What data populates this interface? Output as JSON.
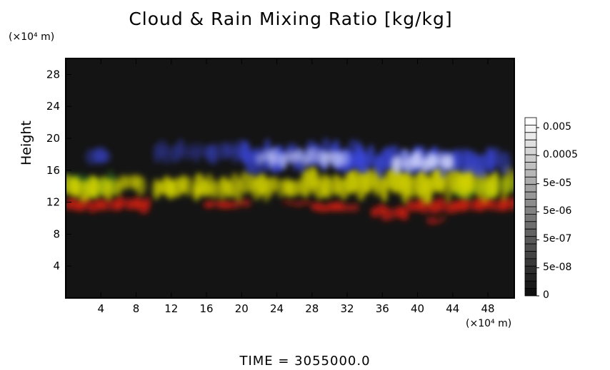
{
  "chart_data": {
    "type": "heatmap",
    "title": "Cloud & Rain Mixing Ratio [kg/kg]",
    "ylabel": "Height",
    "xlabel": "",
    "y_unit": "(×10⁴ m)",
    "x_unit": "(×10⁴ m)",
    "xlim": [
      0,
      51
    ],
    "ylim": [
      0,
      30
    ],
    "x_ticks": [
      4,
      8,
      12,
      16,
      20,
      24,
      28,
      32,
      36,
      40,
      44,
      48
    ],
    "y_ticks": [
      4,
      8,
      12,
      16,
      20,
      24,
      28
    ],
    "colorbar": {
      "labels": [
        "0.005",
        "0.0005",
        "5e-05",
        "5e-06",
        "5e-07",
        "5e-08",
        "0"
      ]
    },
    "footer": "TIME  =  3055000.0",
    "layers": {
      "ice_blue": {
        "color": "#3a46d8",
        "regions": [
          {
            "x": [
              2.5,
              5
            ],
            "y": [
              16.5,
              18.5
            ],
            "intensity": 0.5
          },
          {
            "x": [
              10,
              22
            ],
            "y": [
              17,
              19.5
            ],
            "intensity": 0.45
          },
          {
            "x": [
              20,
              34
            ],
            "y": [
              15.8,
              19.3
            ],
            "intensity": 0.85
          },
          {
            "x": [
              31,
              50
            ],
            "y": [
              15.5,
              18.8
            ],
            "intensity": 0.9
          }
        ]
      },
      "ice_white": {
        "color": "#d8dcff",
        "regions": [
          {
            "x": [
              22,
              32
            ],
            "y": [
              16.5,
              18.5
            ],
            "intensity": 0.55
          },
          {
            "x": [
              37,
              44
            ],
            "y": [
              15.8,
              18.3
            ],
            "intensity": 0.8
          }
        ]
      },
      "cloud_yellow": {
        "color": "#d4d400",
        "regions": [
          {
            "x": [
              0,
              5
            ],
            "y": [
              12.3,
              15
            ],
            "intensity": 0.9
          },
          {
            "x": [
              5,
              9
            ],
            "y": [
              13,
              15.3
            ],
            "intensity": 0.75
          },
          {
            "x": [
              10,
              14
            ],
            "y": [
              12.5,
              15
            ],
            "intensity": 0.9
          },
          {
            "x": [
              14.5,
              19
            ],
            "y": [
              12.3,
              15.2
            ],
            "intensity": 0.9
          },
          {
            "x": [
              19,
              23
            ],
            "y": [
              12.5,
              15.5
            ],
            "intensity": 0.9
          },
          {
            "x": [
              23,
              27
            ],
            "y": [
              12.8,
              15.2
            ],
            "intensity": 0.8
          },
          {
            "x": [
              27,
              37
            ],
            "y": [
              12.5,
              16
            ],
            "intensity": 0.95
          },
          {
            "x": [
              37,
              45
            ],
            "y": [
              12.3,
              16.3
            ],
            "intensity": 0.95
          },
          {
            "x": [
              45,
              51
            ],
            "y": [
              12.3,
              16
            ],
            "intensity": 0.9
          }
        ]
      },
      "cloud_green": {
        "color": "#3a9a22",
        "regions": [
          {
            "x": [
              0,
              6
            ],
            "y": [
              12.8,
              15.5
            ],
            "intensity": 0.5
          },
          {
            "x": [
              44,
              51
            ],
            "y": [
              12.5,
              15
            ],
            "intensity": 0.45
          }
        ]
      },
      "rain_red": {
        "color": "#d01e12",
        "regions": [
          {
            "x": [
              0,
              9.5
            ],
            "y": [
              10.8,
              12.5
            ],
            "intensity": 0.95
          },
          {
            "x": [
              16,
              21
            ],
            "y": [
              11.2,
              12.3
            ],
            "intensity": 0.8
          },
          {
            "x": [
              25,
              28
            ],
            "y": [
              11.5,
              12.2
            ],
            "intensity": 0.6
          },
          {
            "x": [
              28,
              33
            ],
            "y": [
              10.8,
              12
            ],
            "intensity": 0.8
          },
          {
            "x": [
              35,
              39
            ],
            "y": [
              9.8,
              11.7
            ],
            "intensity": 0.85
          },
          {
            "x": [
              39,
              51
            ],
            "y": [
              10.7,
              12.5
            ],
            "intensity": 0.95
          },
          {
            "x": [
              41,
              43
            ],
            "y": [
              9.3,
              10.2
            ],
            "intensity": 0.7
          }
        ]
      }
    }
  }
}
